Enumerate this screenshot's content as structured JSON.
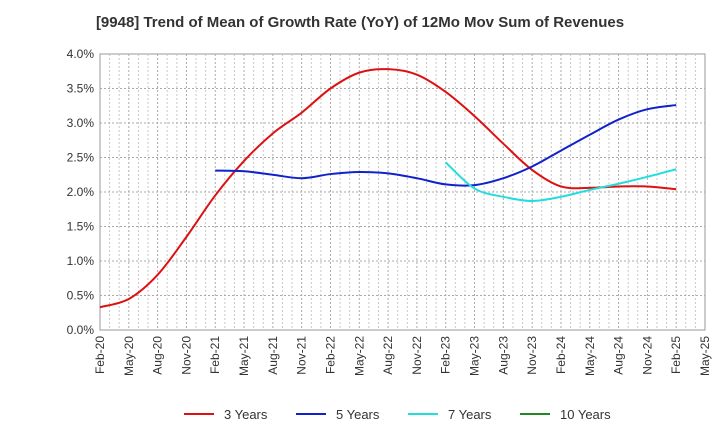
{
  "chart_data": {
    "type": "line",
    "title": "[9948]  Trend of Mean of Growth Rate (YoY) of 12Mo Mov Sum of Revenues",
    "xlabel": "",
    "ylabel": "",
    "ylim": [
      0,
      4
    ],
    "grid": true,
    "legend_position": "bottom",
    "y_ticks": [
      "0.0%",
      "0.5%",
      "1.0%",
      "1.5%",
      "2.0%",
      "2.5%",
      "3.0%",
      "3.5%",
      "4.0%"
    ],
    "categories": [
      "Feb-20",
      "May-20",
      "Aug-20",
      "Nov-20",
      "Feb-21",
      "May-21",
      "Aug-21",
      "Nov-21",
      "Feb-22",
      "May-22",
      "Aug-22",
      "Nov-22",
      "Feb-23",
      "May-23",
      "Aug-23",
      "Nov-23",
      "Feb-24",
      "May-24",
      "Aug-24",
      "Nov-24",
      "Feb-25",
      "May-25"
    ],
    "series": [
      {
        "name": "3 Years",
        "color": "#dd1111",
        "values": [
          0.33,
          0.45,
          0.8,
          1.35,
          1.95,
          2.45,
          2.85,
          3.15,
          3.5,
          3.73,
          3.78,
          3.7,
          3.45,
          3.1,
          2.7,
          2.32,
          2.08,
          2.06,
          2.08,
          2.08,
          2.04,
          null
        ]
      },
      {
        "name": "5 Years",
        "color": "#1122cc",
        "values": [
          null,
          null,
          null,
          null,
          2.31,
          2.3,
          2.25,
          2.2,
          2.26,
          2.29,
          2.27,
          2.2,
          2.11,
          2.1,
          2.2,
          2.37,
          2.6,
          2.83,
          3.05,
          3.2,
          3.26,
          null
        ]
      },
      {
        "name": "7 Years",
        "color": "#22dddd",
        "values": [
          null,
          null,
          null,
          null,
          null,
          null,
          null,
          null,
          null,
          null,
          null,
          null,
          2.43,
          2.05,
          1.93,
          1.87,
          1.93,
          2.03,
          2.12,
          2.22,
          2.33,
          null
        ]
      },
      {
        "name": "10 Years",
        "color": "#228822",
        "values": [
          null,
          null,
          null,
          null,
          null,
          null,
          null,
          null,
          null,
          null,
          null,
          null,
          null,
          null,
          null,
          null,
          null,
          null,
          null,
          null,
          null,
          null
        ]
      }
    ]
  }
}
